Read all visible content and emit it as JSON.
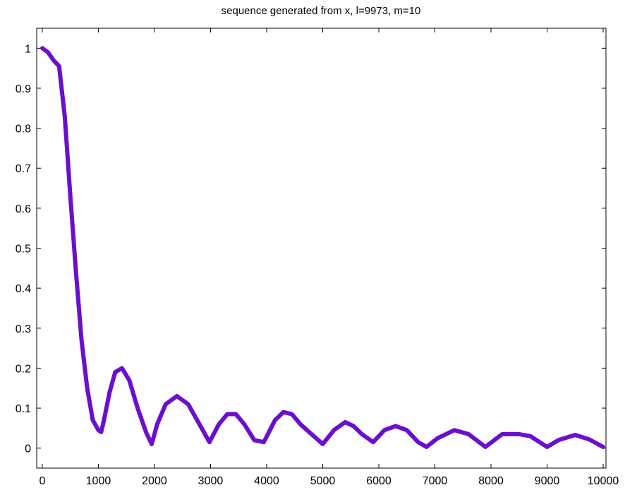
{
  "chart_data": {
    "type": "line",
    "title": "sequence generated from x, l=9973, m=10",
    "xlabel": "",
    "ylabel": "",
    "xlim": [
      -100,
      10050
    ],
    "ylim": [
      -0.05,
      1.05
    ],
    "x_ticks": [
      0,
      1000,
      2000,
      3000,
      4000,
      5000,
      6000,
      7000,
      8000,
      9000,
      10000
    ],
    "y_ticks": [
      0,
      0.1,
      0.2,
      0.3,
      0.4,
      0.5,
      0.6,
      0.7,
      0.8,
      0.9,
      1
    ],
    "x_tick_labels": [
      "0",
      "1000",
      "2000",
      "3000",
      "4000",
      "5000",
      "6000",
      "7000",
      "8000",
      "9000",
      "10000"
    ],
    "y_tick_labels": [
      "0",
      "0.1",
      "0.2",
      "0.3",
      "0.4",
      "0.5",
      "0.6",
      "0.7",
      "0.8",
      "0.9",
      "1"
    ],
    "grid": false,
    "colors": {
      "line": "#6a0fcc",
      "axes": "#000000",
      "background": "#ffffff"
    },
    "series": [
      {
        "x": [
          0,
          100,
          200,
          300,
          400,
          500,
          600,
          700,
          800,
          900,
          1000,
          1050,
          1100,
          1200,
          1300,
          1420,
          1550,
          1700,
          1850,
          1950,
          2050,
          2200,
          2400,
          2600,
          2800,
          2980,
          3150,
          3300,
          3450,
          3600,
          3780,
          3950,
          4150,
          4300,
          4450,
          4600,
          4800,
          5000,
          5200,
          5400,
          5550,
          5700,
          5900,
          6100,
          6300,
          6500,
          6700,
          6850,
          7050,
          7350,
          7600,
          7900,
          8200,
          8500,
          8700,
          9000,
          9200,
          9500,
          9750,
          10000
        ],
        "y": [
          1.0,
          0.99,
          0.97,
          0.955,
          0.83,
          0.63,
          0.44,
          0.27,
          0.15,
          0.07,
          0.045,
          0.04,
          0.07,
          0.14,
          0.19,
          0.2,
          0.17,
          0.1,
          0.04,
          0.01,
          0.06,
          0.11,
          0.13,
          0.11,
          0.06,
          0.015,
          0.06,
          0.085,
          0.085,
          0.06,
          0.02,
          0.015,
          0.07,
          0.09,
          0.085,
          0.06,
          0.035,
          0.01,
          0.045,
          0.065,
          0.055,
          0.035,
          0.015,
          0.045,
          0.055,
          0.045,
          0.015,
          0.003,
          0.025,
          0.045,
          0.035,
          0.003,
          0.035,
          0.035,
          0.03,
          0.003,
          0.02,
          0.033,
          0.022,
          0.003
        ]
      }
    ]
  }
}
